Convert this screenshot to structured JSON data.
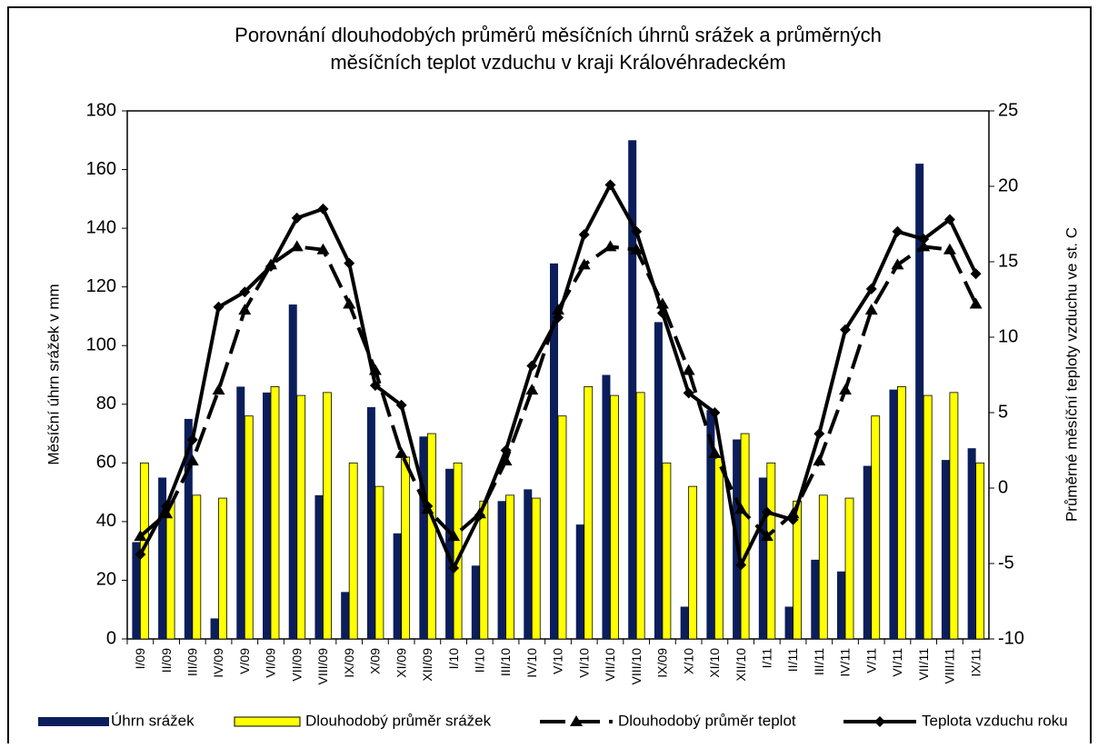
{
  "chart_data": {
    "type": "bar",
    "title": [
      "Porovnání dlouhodobých průměrů měsíčních úhrnů srážek a průměrných",
      "měsíčních teplot vzduchu v kraji Královéhradeckém"
    ],
    "y_label": "Měsíční úhrn srážek v mm",
    "y2_label": "Průměrné měsíční teploty vzduchu ve st. C",
    "categories": [
      "I/09",
      "II/09",
      "III/09",
      "IV/09",
      "V/09",
      "VI/09",
      "VII/09",
      "VIII/09",
      "IX/09",
      "X/09",
      "XI/09",
      "XII/09",
      "I/10",
      "II/10",
      "III/10",
      "IV/10",
      "V/10",
      "VI/10",
      "VII/10",
      "VIII/10",
      "IX/09",
      "X/10",
      "XI/10",
      "XII/10",
      "I/11",
      "II/11",
      "III/11",
      "IV/11",
      "V/11",
      "VI/11",
      "VII/11",
      "VIII/11",
      "IX/11"
    ],
    "ylim": [
      0,
      180
    ],
    "yticks": [
      0,
      20,
      40,
      60,
      80,
      100,
      120,
      140,
      160,
      180
    ],
    "y2lim": [
      -10,
      25
    ],
    "y2ticks": [
      -10,
      -5,
      0,
      5,
      10,
      15,
      20,
      25
    ],
    "legend": "bottom",
    "series": [
      {
        "name": "Úhrn srážek",
        "type": "bar",
        "color": "#0b1e5b",
        "values": [
          33,
          55,
          75,
          7,
          86,
          84,
          114,
          49,
          16,
          79,
          36,
          69,
          58,
          25,
          47,
          51,
          128,
          39,
          90,
          170,
          108,
          11,
          78,
          68,
          55,
          11,
          27,
          23,
          59,
          85,
          162,
          61,
          65
        ]
      },
      {
        "name": "Dlouhodobý průměr srážek",
        "type": "bar",
        "color": "#ffff00",
        "values": [
          60,
          47,
          49,
          48,
          76,
          86,
          83,
          84,
          60,
          52,
          62,
          70,
          60,
          47,
          49,
          48,
          76,
          86,
          83,
          84,
          60,
          52,
          62,
          70,
          60,
          47,
          49,
          48,
          76,
          86,
          83,
          84,
          60
        ]
      },
      {
        "name": "Dlouhodobý průměr teplot",
        "type": "line",
        "axis": "y2",
        "color": "#000000",
        "marker": "triangle",
        "dashed": true,
        "values": [
          -3.2,
          -1.7,
          1.8,
          6.5,
          11.8,
          14.8,
          16,
          15.8,
          12.2,
          7.8,
          2.3,
          -1.4,
          -3.2,
          -1.7,
          1.8,
          6.5,
          11.8,
          14.8,
          16,
          15.8,
          12.2,
          7.8,
          2.3,
          -1.4,
          -3.2,
          -1.7,
          1.8,
          6.5,
          11.8,
          14.8,
          16,
          15.8,
          12.2
        ]
      },
      {
        "name": "Teplota vzduchu roku",
        "type": "line",
        "axis": "y2",
        "color": "#000000",
        "marker": "diamond",
        "dashed": false,
        "values": [
          -4.4,
          -1.2,
          3.2,
          12,
          13,
          14.7,
          17.9,
          18.5,
          14.9,
          6.8,
          5.5,
          -1.2,
          -5.3,
          -1.8,
          2.5,
          8.1,
          11.3,
          16.8,
          20.1,
          17,
          11.6,
          6.3,
          5,
          -5.1,
          -1.6,
          -2.1,
          3.6,
          10.5,
          13.2,
          17,
          16.5,
          17.8,
          14.2
        ]
      }
    ]
  }
}
